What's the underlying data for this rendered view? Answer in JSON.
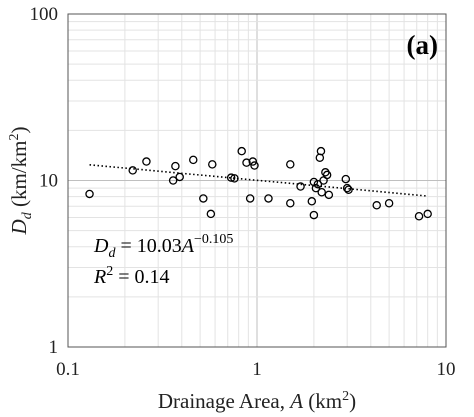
{
  "chart_data": {
    "type": "scatter",
    "panel_label": "(a)",
    "xlabel": {
      "main": "Drainage Area, ",
      "var": "A",
      "unit": " (km",
      "sup": "2",
      "close": ")"
    },
    "ylabel": {
      "main": "D",
      "sub": "d",
      "unit": " (km/km",
      "sup": "2",
      "close": ")"
    },
    "xscale": "log",
    "yscale": "log",
    "xlim": [
      0.1,
      10
    ],
    "ylim": [
      1,
      100
    ],
    "xticks": [
      {
        "value": 0.1,
        "label": "0.1"
      },
      {
        "value": 1,
        "label": "1"
      },
      {
        "value": 10,
        "label": "10"
      }
    ],
    "yticks": [
      {
        "value": 1,
        "label": "1"
      },
      {
        "value": 10,
        "label": "10"
      },
      {
        "value": 100,
        "label": "100"
      }
    ],
    "grid": true,
    "marker": "open-circle",
    "points": [
      [
        0.13,
        8.3
      ],
      [
        0.22,
        11.5
      ],
      [
        0.26,
        13.0
      ],
      [
        0.36,
        10.0
      ],
      [
        0.37,
        12.2
      ],
      [
        0.39,
        10.5
      ],
      [
        0.46,
        13.3
      ],
      [
        0.52,
        7.8
      ],
      [
        0.57,
        6.3
      ],
      [
        0.58,
        12.5
      ],
      [
        0.73,
        10.4
      ],
      [
        0.76,
        10.3
      ],
      [
        0.83,
        15.0
      ],
      [
        0.88,
        12.8
      ],
      [
        0.92,
        7.8
      ],
      [
        0.95,
        13.0
      ],
      [
        0.97,
        12.3
      ],
      [
        1.15,
        7.8
      ],
      [
        1.5,
        12.5
      ],
      [
        1.5,
        7.3
      ],
      [
        1.7,
        9.2
      ],
      [
        1.95,
        7.5
      ],
      [
        2.0,
        6.2
      ],
      [
        2.0,
        9.8
      ],
      [
        2.05,
        9.0
      ],
      [
        2.1,
        9.5
      ],
      [
        2.15,
        13.7
      ],
      [
        2.18,
        15.0
      ],
      [
        2.2,
        8.5
      ],
      [
        2.25,
        10.0
      ],
      [
        2.3,
        11.2
      ],
      [
        2.35,
        10.8
      ],
      [
        2.4,
        8.2
      ],
      [
        2.95,
        10.2
      ],
      [
        3.0,
        9.0
      ],
      [
        3.05,
        8.8
      ],
      [
        4.3,
        7.1
      ],
      [
        5.0,
        7.3
      ],
      [
        7.2,
        6.1
      ],
      [
        8.0,
        6.3
      ]
    ],
    "trendline": {
      "style": "dotted",
      "coefficient": 10.03,
      "exponent": -0.105,
      "x_range": [
        0.13,
        8.0
      ]
    },
    "equation": {
      "lhs_main": "D",
      "lhs_sub": "d",
      "rhs": " = 10.03",
      "var": "A",
      "exp": "−0.105"
    },
    "r2": {
      "label": "R",
      "sup": "2",
      "value": " = 0.14"
    }
  }
}
